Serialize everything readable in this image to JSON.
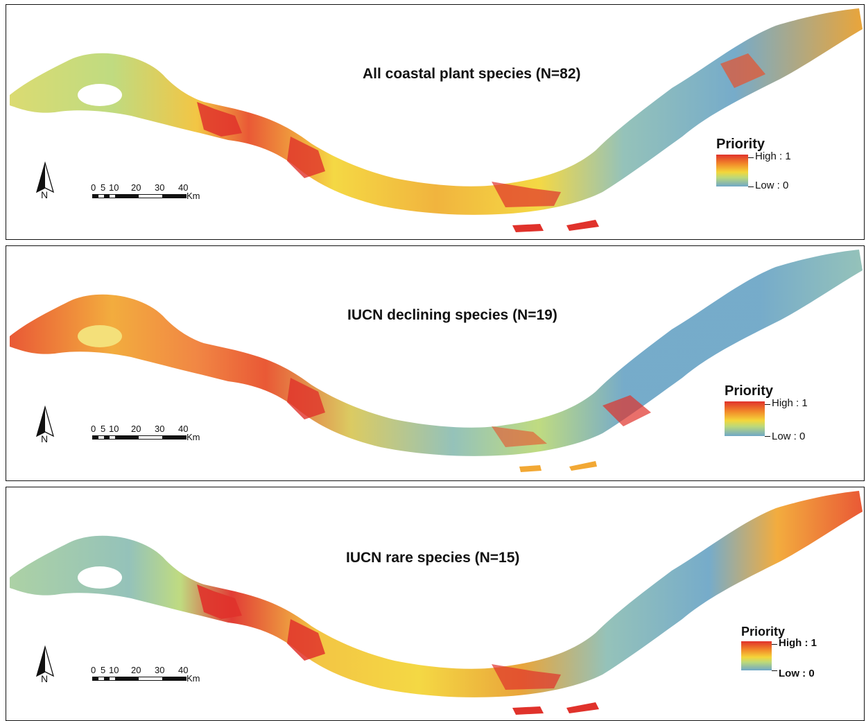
{
  "panels": [
    {
      "title": "All coastal plant species (N=82)",
      "north_label": "N",
      "scale_labels": [
        "0",
        "5",
        "10",
        "20",
        "30",
        "40"
      ],
      "scale_unit": "Km",
      "legend": {
        "title": "Priority",
        "high": "High : 1",
        "low": "Low : 0"
      },
      "pattern": "mixed"
    },
    {
      "title": "IUCN declining species (N=19)",
      "north_label": "N",
      "scale_labels": [
        "0",
        "5",
        "10",
        "20",
        "30",
        "40"
      ],
      "scale_unit": "Km",
      "legend": {
        "title": "Priority",
        "high": "High : 1",
        "low": "Low : 0"
      },
      "pattern": "west-warm"
    },
    {
      "title": "IUCN rare species (N=15)",
      "north_label": "N",
      "scale_labels": [
        "0",
        "5",
        "10",
        "20",
        "30",
        "40"
      ],
      "scale_unit": "Km",
      "legend": {
        "title": "Priority",
        "high": "High : 1",
        "low": "Low : 0"
      },
      "pattern": "center-warm"
    }
  ],
  "colors": {
    "high": "#e0322b",
    "orange": "#f28c2a",
    "yellow": "#f4d63a",
    "greenish": "#bcd97a",
    "low": "#6fa7c7"
  }
}
